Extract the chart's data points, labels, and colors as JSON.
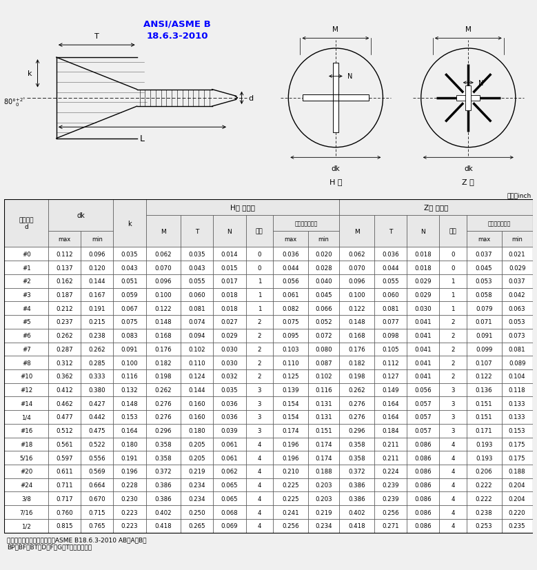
{
  "standard": "ANSI/ASME B\n18.6.3-2010",
  "unit_label": "单位：inch",
  "h_type_label": "H 型",
  "z_type_label": "Z 型",
  "note": "备注：螺纹及尾端形式，参照ASME B18.6.3-2010 AB、A、B、\nBP、BF、BT、D、F、G、T型螺纹及尾端",
  "rows": [
    [
      "#0",
      "0.112",
      "0.096",
      "0.035",
      "0.062",
      "0.035",
      "0.014",
      "0",
      "0.036",
      "0.020",
      "0.062",
      "0.036",
      "0.018",
      "0",
      "0.037",
      "0.021"
    ],
    [
      "#1",
      "0.137",
      "0.120",
      "0.043",
      "0.070",
      "0.043",
      "0.015",
      "0",
      "0.044",
      "0.028",
      "0.070",
      "0.044",
      "0.018",
      "0",
      "0.045",
      "0.029"
    ],
    [
      "#2",
      "0.162",
      "0.144",
      "0.051",
      "0.096",
      "0.055",
      "0.017",
      "1",
      "0.056",
      "0.040",
      "0.096",
      "0.055",
      "0.029",
      "1",
      "0.053",
      "0.037"
    ],
    [
      "#3",
      "0.187",
      "0.167",
      "0.059",
      "0.100",
      "0.060",
      "0.018",
      "1",
      "0.061",
      "0.045",
      "0.100",
      "0.060",
      "0.029",
      "1",
      "0.058",
      "0.042"
    ],
    [
      "#4",
      "0.212",
      "0.191",
      "0.067",
      "0.122",
      "0.081",
      "0.018",
      "1",
      "0.082",
      "0.066",
      "0.122",
      "0.081",
      "0.030",
      "1",
      "0.079",
      "0.063"
    ],
    [
      "#5",
      "0.237",
      "0.215",
      "0.075",
      "0.148",
      "0.074",
      "0.027",
      "2",
      "0.075",
      "0.052",
      "0.148",
      "0.077",
      "0.041",
      "2",
      "0.071",
      "0.053"
    ],
    [
      "#6",
      "0.262",
      "0.238",
      "0.083",
      "0.168",
      "0.094",
      "0.029",
      "2",
      "0.095",
      "0.072",
      "0.168",
      "0.098",
      "0.041",
      "2",
      "0.091",
      "0.073"
    ],
    [
      "#7",
      "0.287",
      "0.262",
      "0.091",
      "0.176",
      "0.102",
      "0.030",
      "2",
      "0.103",
      "0.080",
      "0.176",
      "0.105",
      "0.041",
      "2",
      "0.099",
      "0.081"
    ],
    [
      "#8",
      "0.312",
      "0.285",
      "0.100",
      "0.182",
      "0.110",
      "0.030",
      "2",
      "0.110",
      "0.087",
      "0.182",
      "0.112",
      "0.041",
      "2",
      "0.107",
      "0.089"
    ],
    [
      "#10",
      "0.362",
      "0.333",
      "0.116",
      "0.198",
      "0.124",
      "0.032",
      "2",
      "0.125",
      "0.102",
      "0.198",
      "0.127",
      "0.041",
      "2",
      "0.122",
      "0.104"
    ],
    [
      "#12",
      "0.412",
      "0.380",
      "0.132",
      "0.262",
      "0.144",
      "0.035",
      "3",
      "0.139",
      "0.116",
      "0.262",
      "0.149",
      "0.056",
      "3",
      "0.136",
      "0.118"
    ],
    [
      "#14",
      "0.462",
      "0.427",
      "0.148",
      "0.276",
      "0.160",
      "0.036",
      "3",
      "0.154",
      "0.131",
      "0.276",
      "0.164",
      "0.057",
      "3",
      "0.151",
      "0.133"
    ],
    [
      "1/4",
      "0.477",
      "0.442",
      "0.153",
      "0.276",
      "0.160",
      "0.036",
      "3",
      "0.154",
      "0.131",
      "0.276",
      "0.164",
      "0.057",
      "3",
      "0.151",
      "0.133"
    ],
    [
      "#16",
      "0.512",
      "0.475",
      "0.164",
      "0.296",
      "0.180",
      "0.039",
      "3",
      "0.174",
      "0.151",
      "0.296",
      "0.184",
      "0.057",
      "3",
      "0.171",
      "0.153"
    ],
    [
      "#18",
      "0.561",
      "0.522",
      "0.180",
      "0.358",
      "0.205",
      "0.061",
      "4",
      "0.196",
      "0.174",
      "0.358",
      "0.211",
      "0.086",
      "4",
      "0.193",
      "0.175"
    ],
    [
      "5/16",
      "0.597",
      "0.556",
      "0.191",
      "0.358",
      "0.205",
      "0.061",
      "4",
      "0.196",
      "0.174",
      "0.358",
      "0.211",
      "0.086",
      "4",
      "0.193",
      "0.175"
    ],
    [
      "#20",
      "0.611",
      "0.569",
      "0.196",
      "0.372",
      "0.219",
      "0.062",
      "4",
      "0.210",
      "0.188",
      "0.372",
      "0.224",
      "0.086",
      "4",
      "0.206",
      "0.188"
    ],
    [
      "#24",
      "0.711",
      "0.664",
      "0.228",
      "0.386",
      "0.234",
      "0.065",
      "4",
      "0.225",
      "0.203",
      "0.386",
      "0.239",
      "0.086",
      "4",
      "0.222",
      "0.204"
    ],
    [
      "3/8",
      "0.717",
      "0.670",
      "0.230",
      "0.386",
      "0.234",
      "0.065",
      "4",
      "0.225",
      "0.203",
      "0.386",
      "0.239",
      "0.086",
      "4",
      "0.222",
      "0.204"
    ],
    [
      "7/16",
      "0.760",
      "0.715",
      "0.223",
      "0.402",
      "0.250",
      "0.068",
      "4",
      "0.241",
      "0.219",
      "0.402",
      "0.256",
      "0.086",
      "4",
      "0.238",
      "0.220"
    ],
    [
      "1/2",
      "0.815",
      "0.765",
      "0.223",
      "0.418",
      "0.265",
      "0.069",
      "4",
      "0.256",
      "0.234",
      "0.418",
      "0.271",
      "0.086",
      "4",
      "0.253",
      "0.235"
    ]
  ],
  "bg_color": "#f0f0f0"
}
